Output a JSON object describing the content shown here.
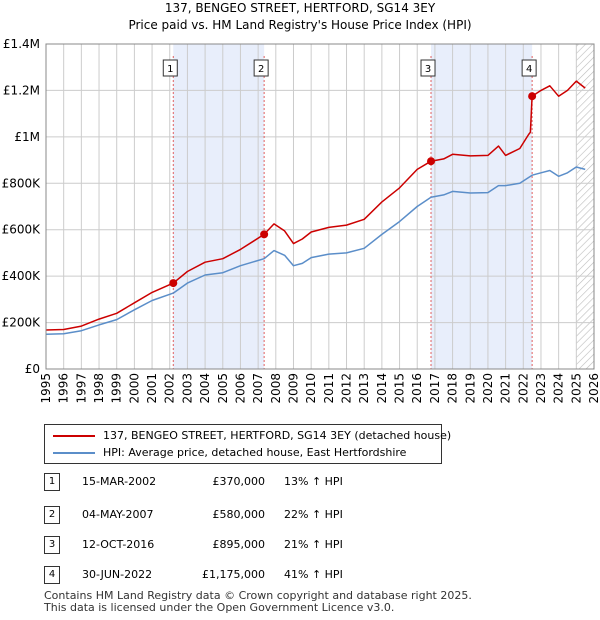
{
  "header": {
    "title": "137, BENGEO STREET, HERTFORD, SG14 3EY",
    "subtitle": "Price paid vs. HM Land Registry's House Price Index (HPI)"
  },
  "colors": {
    "price_line": "#cc0000",
    "hpi_line": "#5b8ec9",
    "shade": "#e8eefb",
    "grid": "#cccccc",
    "marker_vline": "#e06060"
  },
  "chart_data": {
    "type": "line",
    "title": "137, BENGEO STREET, HERTFORD, SG14 3EY",
    "subtitle": "Price paid vs. HM Land Registry's House Price Index (HPI)",
    "xlabel": "",
    "ylabel": "",
    "xlim": [
      1995,
      2026
    ],
    "ylim": [
      0,
      1400000
    ],
    "grid": true,
    "y_ticks": [
      {
        "value": 0,
        "label": "£0"
      },
      {
        "value": 200000,
        "label": "£200K"
      },
      {
        "value": 400000,
        "label": "£400K"
      },
      {
        "value": 600000,
        "label": "£600K"
      },
      {
        "value": 800000,
        "label": "£800K"
      },
      {
        "value": 1000000,
        "label": "£1M"
      },
      {
        "value": 1200000,
        "label": "£1.2M"
      },
      {
        "value": 1400000,
        "label": "£1.4M"
      }
    ],
    "x_ticks": [
      "1995",
      "1996",
      "1997",
      "1998",
      "1999",
      "2000",
      "2001",
      "2002",
      "2003",
      "2004",
      "2005",
      "2006",
      "2007",
      "2008",
      "2009",
      "2010",
      "2011",
      "2012",
      "2013",
      "2014",
      "2015",
      "2016",
      "2017",
      "2018",
      "2019",
      "2020",
      "2021",
      "2022",
      "2023",
      "2024",
      "2025",
      "2026"
    ],
    "shaded_ranges": [
      [
        2002.2,
        2007.34
      ],
      [
        2016.78,
        2022.5
      ]
    ],
    "hatched_range": [
      2025.0,
      2026.0
    ],
    "series": [
      {
        "name": "137, BENGEO STREET, HERTFORD, SG14 3EY (detached house)",
        "points": [
          [
            1995.0,
            168000
          ],
          [
            1996.0,
            170000
          ],
          [
            1997.0,
            185000
          ],
          [
            1998.0,
            215000
          ],
          [
            1999.0,
            240000
          ],
          [
            2000.0,
            285000
          ],
          [
            2001.0,
            330000
          ],
          [
            2002.2,
            370000
          ],
          [
            2003.0,
            420000
          ],
          [
            2004.0,
            460000
          ],
          [
            2005.0,
            475000
          ],
          [
            2006.0,
            515000
          ],
          [
            2007.34,
            580000
          ],
          [
            2007.9,
            625000
          ],
          [
            2008.5,
            595000
          ],
          [
            2009.0,
            540000
          ],
          [
            2009.5,
            560000
          ],
          [
            2010.0,
            590000
          ],
          [
            2011.0,
            610000
          ],
          [
            2012.0,
            620000
          ],
          [
            2013.0,
            645000
          ],
          [
            2014.0,
            720000
          ],
          [
            2015.0,
            780000
          ],
          [
            2016.0,
            860000
          ],
          [
            2016.78,
            895000
          ],
          [
            2017.5,
            905000
          ],
          [
            2018.0,
            925000
          ],
          [
            2019.0,
            918000
          ],
          [
            2020.0,
            920000
          ],
          [
            2020.6,
            960000
          ],
          [
            2021.0,
            920000
          ],
          [
            2021.8,
            950000
          ],
          [
            2022.3,
            1010000
          ],
          [
            2022.4,
            1020000
          ],
          [
            2022.5,
            1175000
          ],
          [
            2023.0,
            1200000
          ],
          [
            2023.5,
            1220000
          ],
          [
            2024.0,
            1175000
          ],
          [
            2024.5,
            1200000
          ],
          [
            2025.0,
            1240000
          ],
          [
            2025.5,
            1210000
          ]
        ]
      },
      {
        "name": "HPI: Average price, detached house, East Hertfordshire",
        "points": [
          [
            1995.0,
            150000
          ],
          [
            1996.0,
            152000
          ],
          [
            1997.0,
            165000
          ],
          [
            1998.0,
            190000
          ],
          [
            1999.0,
            213000
          ],
          [
            2000.0,
            255000
          ],
          [
            2001.0,
            295000
          ],
          [
            2002.2,
            327000
          ],
          [
            2003.0,
            370000
          ],
          [
            2004.0,
            405000
          ],
          [
            2005.0,
            415000
          ],
          [
            2006.0,
            445000
          ],
          [
            2007.34,
            475000
          ],
          [
            2007.9,
            510000
          ],
          [
            2008.5,
            490000
          ],
          [
            2009.0,
            445000
          ],
          [
            2009.5,
            455000
          ],
          [
            2010.0,
            480000
          ],
          [
            2011.0,
            495000
          ],
          [
            2012.0,
            500000
          ],
          [
            2013.0,
            520000
          ],
          [
            2014.0,
            580000
          ],
          [
            2015.0,
            635000
          ],
          [
            2016.0,
            700000
          ],
          [
            2016.78,
            740000
          ],
          [
            2017.5,
            750000
          ],
          [
            2018.0,
            765000
          ],
          [
            2019.0,
            758000
          ],
          [
            2020.0,
            760000
          ],
          [
            2020.6,
            790000
          ],
          [
            2021.0,
            790000
          ],
          [
            2021.8,
            800000
          ],
          [
            2022.5,
            835000
          ],
          [
            2023.0,
            845000
          ],
          [
            2023.5,
            855000
          ],
          [
            2024.0,
            830000
          ],
          [
            2024.5,
            845000
          ],
          [
            2025.0,
            870000
          ],
          [
            2025.5,
            860000
          ]
        ]
      }
    ],
    "sale_markers": [
      {
        "label": "1",
        "x": 2002.2,
        "y": 370000
      },
      {
        "label": "2",
        "x": 2007.34,
        "y": 580000
      },
      {
        "label": "3",
        "x": 2016.78,
        "y": 895000
      },
      {
        "label": "4",
        "x": 2022.5,
        "y": 1175000
      }
    ]
  },
  "legend": {
    "price_label": "137, BENGEO STREET, HERTFORD, SG14 3EY (detached house)",
    "hpi_label": "HPI: Average price, detached house, East Hertfordshire"
  },
  "transactions": [
    {
      "num": "1",
      "date": "15-MAR-2002",
      "price": "£370,000",
      "hpi": "13% ↑ HPI"
    },
    {
      "num": "2",
      "date": "04-MAY-2007",
      "price": "£580,000",
      "hpi": "22% ↑ HPI"
    },
    {
      "num": "3",
      "date": "12-OCT-2016",
      "price": "£895,000",
      "hpi": "21% ↑ HPI"
    },
    {
      "num": "4",
      "date": "30-JUN-2022",
      "price": "£1,175,000",
      "hpi": "41% ↑ HPI"
    }
  ],
  "footer": {
    "line1": "Contains HM Land Registry data © Crown copyright and database right 2025.",
    "line2": "This data is licensed under the Open Government Licence v3.0."
  }
}
